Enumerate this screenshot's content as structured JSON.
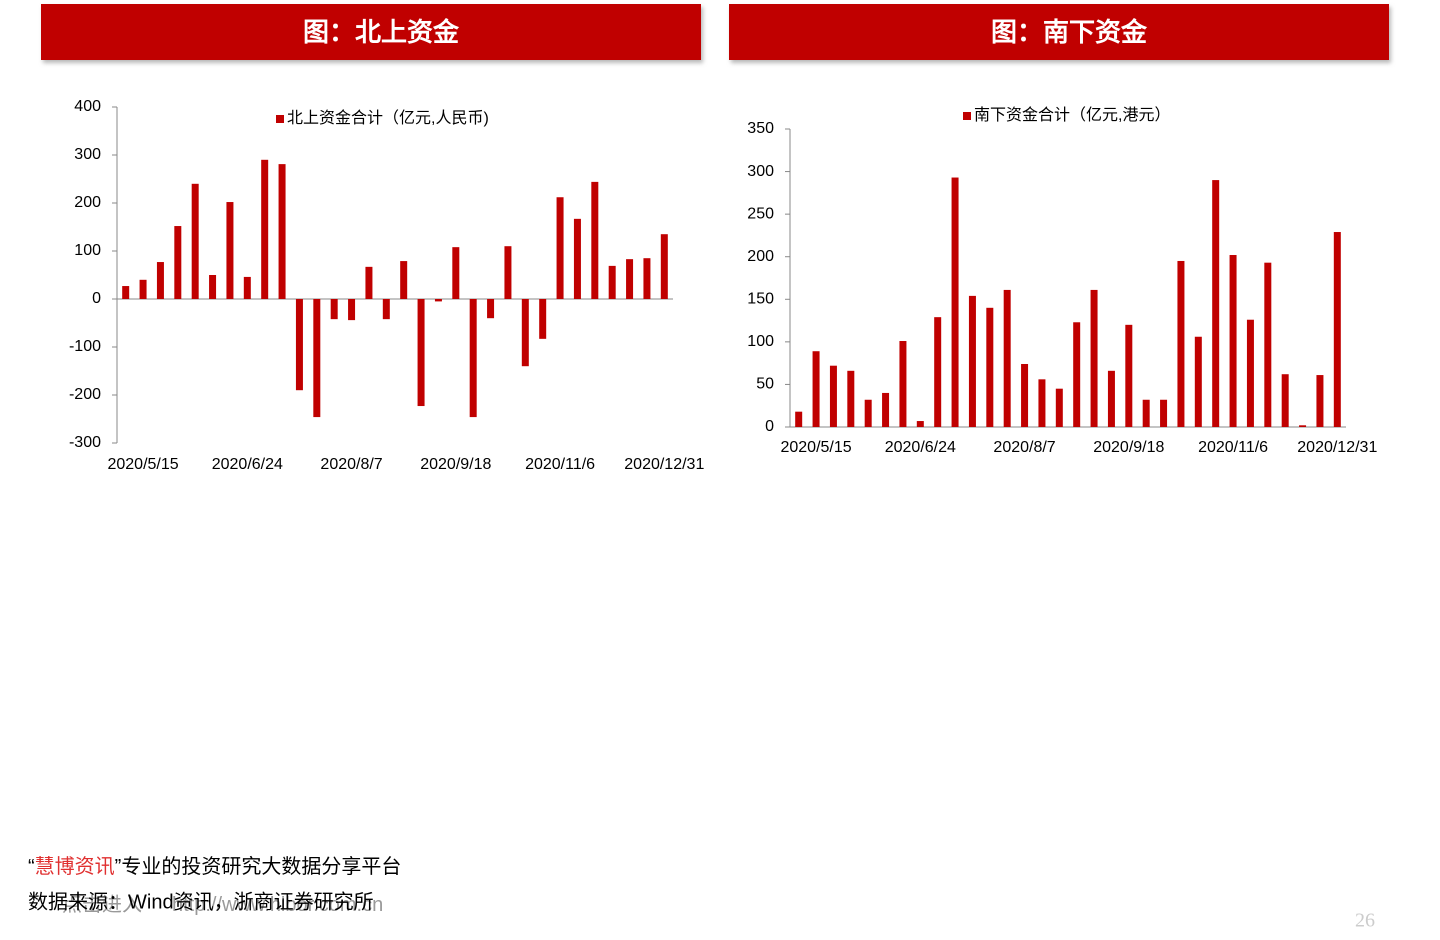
{
  "chart_data": [
    {
      "type": "bar",
      "title": "图：北上资金",
      "legend": "top",
      "categories": [
        null,
        "2020/5/15",
        null,
        null,
        null,
        null,
        null,
        "2020/6/24",
        null,
        null,
        null,
        null,
        null,
        "2020/8/7",
        null,
        null,
        null,
        null,
        null,
        "2020/9/18",
        null,
        null,
        null,
        null,
        null,
        "2020/11/6",
        null,
        null,
        null,
        null,
        null,
        "2020/12/31"
      ],
      "series": [
        {
          "name": "北上资金合计（亿元,人民币)",
          "color": "#c00000",
          "values": [
            27,
            40,
            77,
            152,
            240,
            50,
            202,
            46,
            290,
            281,
            -190,
            -246,
            -42,
            -44,
            67,
            -42,
            79,
            -223,
            -5,
            108,
            -246,
            -40,
            110,
            -140,
            -83,
            212,
            167,
            244,
            69,
            83,
            85,
            135
          ]
        }
      ],
      "ylim": [
        -300,
        400
      ],
      "yticks": [
        -300,
        -200,
        -100,
        0,
        100,
        200,
        300,
        400
      ],
      "grid": false
    },
    {
      "type": "bar",
      "title": "图：南下资金",
      "legend": "top",
      "categories": [
        null,
        "2020/5/15",
        null,
        null,
        null,
        null,
        null,
        "2020/6/24",
        null,
        null,
        null,
        null,
        null,
        "2020/8/7",
        null,
        null,
        null,
        null,
        null,
        "2020/9/18",
        null,
        null,
        null,
        null,
        null,
        "2020/11/6",
        null,
        null,
        null,
        null,
        null,
        "2020/12/31"
      ],
      "series": [
        {
          "name": "南下资金合计（亿元,港元）",
          "color": "#c00000",
          "values": [
            18,
            89,
            72,
            66,
            32,
            40,
            101,
            7,
            129,
            293,
            154,
            140,
            161,
            74,
            56,
            45,
            123,
            161,
            66,
            120,
            32,
            32,
            195,
            106,
            290,
            202,
            126,
            193,
            62,
            2,
            61,
            229
          ]
        }
      ],
      "ylim": [
        0,
        350
      ],
      "yticks": [
        0,
        50,
        100,
        150,
        200,
        250,
        300,
        350
      ],
      "grid": false
    }
  ],
  "footer": {
    "quote_open": "“",
    "brand": "慧博资讯",
    "tagline": "”专业的投资研究大数据分享平台",
    "source": "数据来源：Wind资讯，浙商证券研究所",
    "watermark_click": "点击进入",
    "watermark_url": "http://www.hibor.com.cn",
    "page": "26"
  }
}
